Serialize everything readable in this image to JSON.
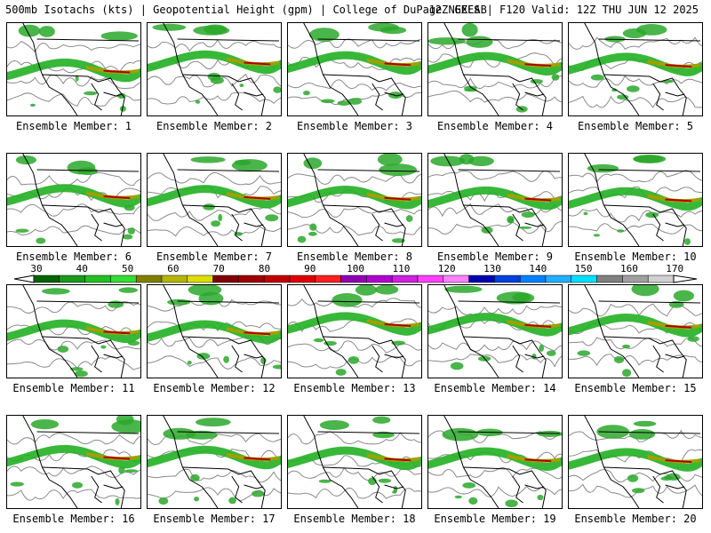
{
  "header": {
    "left": "500mb Isotachs (kts) | Geopotential Height (gpm) | College of DuPage NEXLAB",
    "right": "12Z GEFS | F120 Valid: 12Z THU JUN 12 2025"
  },
  "members": [
    {
      "caption": "Ensemble Member: 1"
    },
    {
      "caption": "Ensemble Member: 2"
    },
    {
      "caption": "Ensemble Member: 3"
    },
    {
      "caption": "Ensemble Member: 4"
    },
    {
      "caption": "Ensemble Member: 5"
    },
    {
      "caption": "Ensemble Member: 6"
    },
    {
      "caption": "Ensemble Member: 7"
    },
    {
      "caption": "Ensemble Member: 8"
    },
    {
      "caption": "Ensemble Member: 9"
    },
    {
      "caption": "Ensemble Member: 10"
    },
    {
      "caption": "Ensemble Member: 11"
    },
    {
      "caption": "Ensemble Member: 12"
    },
    {
      "caption": "Ensemble Member: 13"
    },
    {
      "caption": "Ensemble Member: 14"
    },
    {
      "caption": "Ensemble Member: 15"
    },
    {
      "caption": "Ensemble Member: 16"
    },
    {
      "caption": "Ensemble Member: 17"
    },
    {
      "caption": "Ensemble Member: 18"
    },
    {
      "caption": "Ensemble Member: 19"
    },
    {
      "caption": "Ensemble Member: 20"
    }
  ],
  "colorbar": {
    "labels": [
      "30",
      "40",
      "50",
      "60",
      "70",
      "80",
      "90",
      "100",
      "110",
      "120",
      "130",
      "140",
      "150",
      "160",
      "170"
    ],
    "colors": [
      "#006400",
      "#1a9a1a",
      "#22c022",
      "#33dd33",
      "#808000",
      "#b5b500",
      "#dddd00",
      "#800000",
      "#a00000",
      "#c00000",
      "#e00000",
      "#ff2020",
      "#9000b0",
      "#b000d0",
      "#d020e0",
      "#ff40ff",
      "#ff80ff",
      "#0000b0",
      "#0040e0",
      "#0080ff",
      "#20b0ff",
      "#00e0ff",
      "#808080",
      "#a0a0a0",
      "#d0d0d0"
    ]
  }
}
